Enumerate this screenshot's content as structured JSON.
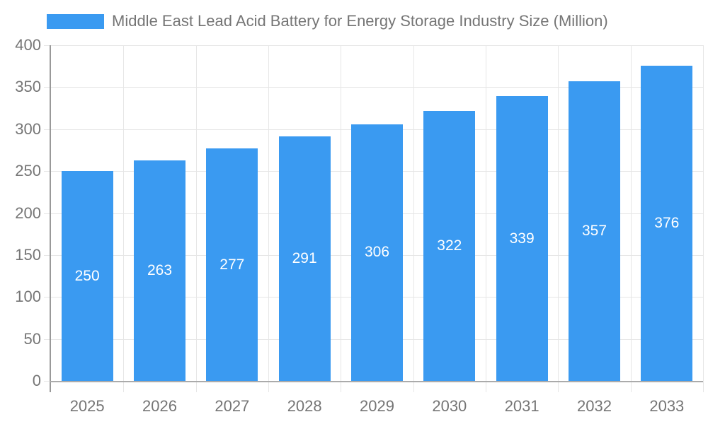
{
  "chart_data": {
    "type": "bar",
    "title": "Middle East Lead Acid Battery for Energy Storage Industry Size (Million)",
    "categories": [
      "2025",
      "2026",
      "2027",
      "2028",
      "2029",
      "2030",
      "2031",
      "2032",
      "2033"
    ],
    "values": [
      250,
      263,
      277,
      291,
      306,
      322,
      339,
      357,
      376
    ],
    "xlabel": "",
    "ylabel": "",
    "ylim": [
      0,
      400
    ],
    "ytick_interval": 50,
    "yticks": [
      "0",
      "50",
      "100",
      "150",
      "200",
      "250",
      "300",
      "350",
      "400"
    ],
    "grid": true,
    "legend_position": "top-left",
    "bar_value_labels": "inside-center"
  },
  "colors": {
    "bar": "#3A9AF1",
    "bar_label": "#FFFFFF",
    "title": "#757575",
    "axis_label": "#757575",
    "grid_line": "#E6E6E6",
    "y_axis_line": "#999999",
    "x_axis_line": "#ABABAB",
    "background": "#FFFFFF"
  }
}
